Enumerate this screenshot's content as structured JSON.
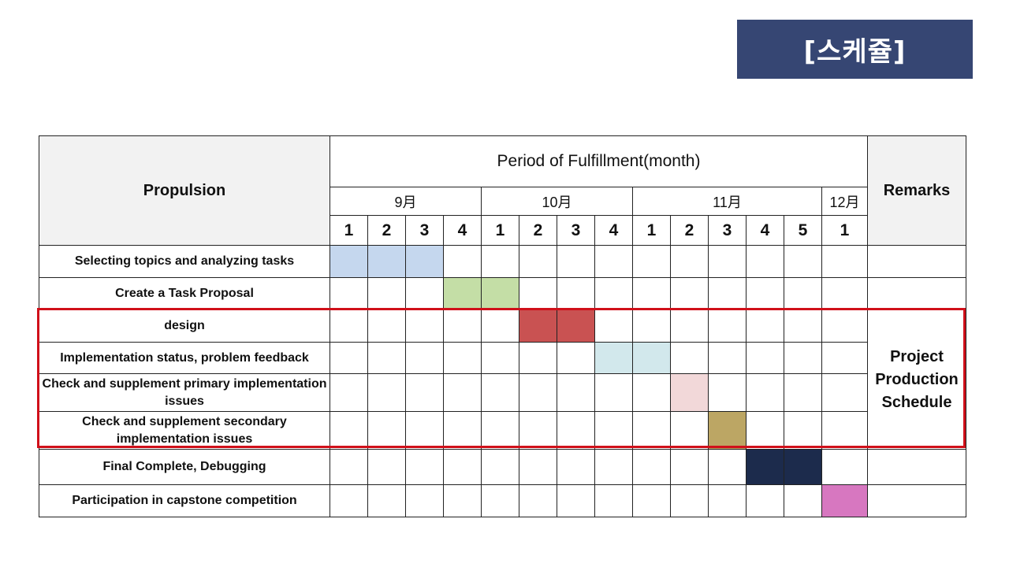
{
  "slide": {
    "title": "[스케쥴]"
  },
  "table": {
    "propulsion_header": "Propulsion",
    "period_header": "Period of Fulfillment(month)",
    "remarks_header": "Remarks",
    "months": [
      {
        "label": "9月",
        "span": 4
      },
      {
        "label": "10月",
        "span": 4
      },
      {
        "label": "11月",
        "span": 5
      },
      {
        "label": "12月",
        "span": 1
      }
    ],
    "weeks": [
      "1",
      "2",
      "3",
      "4",
      "1",
      "2",
      "3",
      "4",
      "1",
      "2",
      "3",
      "4",
      "5",
      "1"
    ],
    "tasks": [
      {
        "label": "Selecting topics and analyzing tasks",
        "start": 0,
        "end": 2,
        "color": "#c5d7ee"
      },
      {
        "label": "Create a Task Proposal",
        "start": 3,
        "end": 4,
        "color": "#c4dea6"
      },
      {
        "label": "design",
        "start": 5,
        "end": 6,
        "color": "#c95252"
      },
      {
        "label": "Implementation status,  problem feedback",
        "start": 7,
        "end": 8,
        "color": "#d2e8ec"
      },
      {
        "label": "Check and supplement primary implementation issues",
        "start": 9,
        "end": 9,
        "color": "#f2d8d9"
      },
      {
        "label": "Check and supplement secondary implementation issues",
        "start": 10,
        "end": 10,
        "color": "#bca664"
      },
      {
        "label": "Final Complete,  Debugging",
        "start": 11,
        "end": 12,
        "color": "#1c2b4c"
      },
      {
        "label": "Participation in capstone competition",
        "start": 13,
        "end": 13,
        "color": "#d777c0"
      }
    ],
    "remark_group": {
      "label_lines": [
        "Project",
        "Production",
        "Schedule"
      ]
    }
  },
  "colors": {
    "title_bg": "#364673",
    "highlight": "#d0101a",
    "header_bg": "#f2f2f2"
  }
}
